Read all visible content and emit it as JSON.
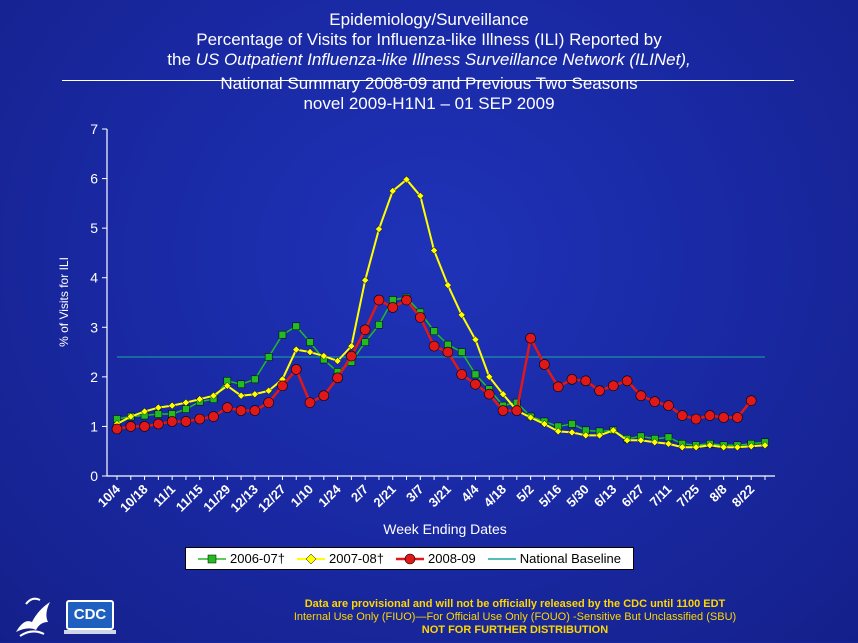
{
  "titles": {
    "line1": "Epidemiology/Surveillance",
    "line2": "Percentage of Visits for Influenza-like Illness (ILI) Reported by",
    "line3_pre": "the ",
    "line3_italic": "US Outpatient Influenza-like Illness Surveillance Network (ILINet),",
    "line4": "National Summary 2008-09 and Previous Two Seasons",
    "line5": "novel 2009-H1N1 – 01 SEP 2009"
  },
  "footer": {
    "line1": "Data are provisional and will not be officially released by the CDC until 1100 EDT",
    "line2": "Internal Use Only (FIUO)—For Official Use Only (FOUO)  -Sensitive But Unclassified (SBU)",
    "line3": "NOT FOR FURTHER DISTRIBUTION"
  },
  "logo": {
    "text": "CDC",
    "icon": "hhs-eagle-icon"
  },
  "colors": {
    "background": "#1a2aa6",
    "s2006": "#22bb22",
    "s2007": "#ffff00",
    "s2008": "#e01818",
    "baseline": "#1aa8a0"
  },
  "chart_data": {
    "type": "line",
    "xlabel": "Week Ending Dates",
    "ylabel": "% of Visits for ILI",
    "ylim": [
      0,
      7
    ],
    "yticks": [
      0,
      1,
      2,
      3,
      4,
      5,
      6,
      7
    ],
    "x_tick_labels": [
      "10/4",
      "10/18",
      "11/1",
      "11/15",
      "11/29",
      "12/13",
      "12/27",
      "1/10",
      "1/24",
      "2/7",
      "2/21",
      "3/7",
      "3/21",
      "4/4",
      "4/18",
      "5/2",
      "5/16",
      "5/30",
      "6/13",
      "6/27",
      "7/11",
      "7/25",
      "8/8",
      "8/22"
    ],
    "weeks": [
      "10/4",
      "10/11",
      "10/18",
      "10/25",
      "11/1",
      "11/8",
      "11/15",
      "11/22",
      "11/29",
      "12/6",
      "12/13",
      "12/20",
      "12/27",
      "1/3",
      "1/10",
      "1/17",
      "1/24",
      "1/31",
      "2/7",
      "2/14",
      "2/21",
      "2/28",
      "3/7",
      "3/14",
      "3/21",
      "3/28",
      "4/4",
      "4/11",
      "4/18",
      "4/25",
      "5/2",
      "5/9",
      "5/16",
      "5/23",
      "5/30",
      "6/6",
      "6/13",
      "6/20",
      "6/27",
      "7/4",
      "7/11",
      "7/18",
      "7/25",
      "8/1",
      "8/8",
      "8/15",
      "8/22",
      "8/29"
    ],
    "series": [
      {
        "name": "2006-07†",
        "color": "#22bb22",
        "marker": "square",
        "values": [
          1.15,
          1.2,
          1.22,
          1.25,
          1.25,
          1.35,
          1.5,
          1.55,
          1.92,
          1.85,
          1.95,
          2.4,
          2.85,
          3.02,
          2.7,
          2.35,
          2.1,
          2.3,
          2.7,
          3.05,
          3.55,
          3.6,
          3.3,
          2.92,
          2.65,
          2.5,
          2.05,
          1.75,
          1.42,
          1.48,
          1.2,
          1.1,
          1.0,
          1.05,
          0.92,
          0.9,
          0.92,
          0.75,
          0.8,
          0.75,
          0.78,
          0.65,
          0.62,
          0.65,
          0.62,
          0.62,
          0.65,
          0.68
        ]
      },
      {
        "name": "2007-08†",
        "color": "#ffff00",
        "marker": "diamond",
        "values": [
          1.05,
          1.2,
          1.3,
          1.38,
          1.42,
          1.48,
          1.55,
          1.62,
          1.82,
          1.62,
          1.65,
          1.72,
          1.95,
          2.55,
          2.5,
          2.42,
          2.32,
          2.62,
          3.95,
          4.98,
          5.75,
          5.98,
          5.65,
          4.55,
          3.85,
          3.25,
          2.75,
          2.0,
          1.65,
          1.32,
          1.18,
          1.05,
          0.9,
          0.88,
          0.82,
          0.82,
          0.92,
          0.72,
          0.72,
          0.68,
          0.65,
          0.58,
          0.58,
          0.62,
          0.58,
          0.58,
          0.6,
          0.62
        ]
      },
      {
        "name": "2008-09",
        "color": "#e01818",
        "marker": "circle",
        "values": [
          0.95,
          1.0,
          1.0,
          1.05,
          1.1,
          1.1,
          1.15,
          1.2,
          1.38,
          1.32,
          1.32,
          1.48,
          1.82,
          2.15,
          1.48,
          1.62,
          1.98,
          2.42,
          2.95,
          3.55,
          3.4,
          3.55,
          3.2,
          2.62,
          2.5,
          2.05,
          1.85,
          1.65,
          1.32,
          1.32,
          2.78,
          2.25,
          1.8,
          1.95,
          1.92,
          1.72,
          1.82,
          1.92,
          1.62,
          1.5,
          1.42,
          1.22,
          1.15,
          1.22,
          1.18,
          1.18,
          1.52
        ]
      },
      {
        "name": "National Baseline",
        "color": "#1aa8a0",
        "marker": "none",
        "values": [
          2.4
        ]
      }
    ]
  }
}
